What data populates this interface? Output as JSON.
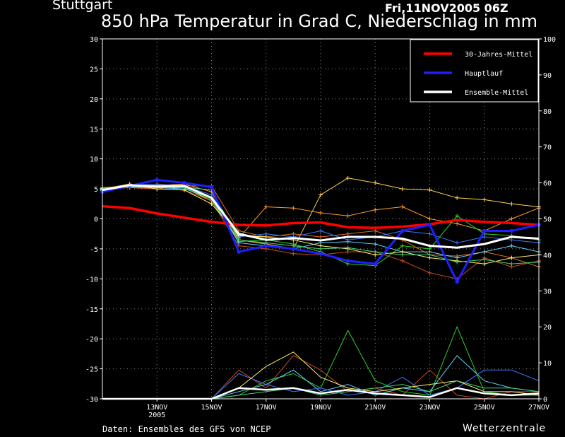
{
  "header": {
    "station": "Stuttgart",
    "datetime": "Fri,11NOV2005 06Z",
    "title": "850 hPa Temperatur in Grad C, Niederschlag in mm"
  },
  "footer": {
    "source": "Daten: Ensembles des GFS von NCEP",
    "brand": "Wetterzentrale"
  },
  "colors": {
    "background": "#000000",
    "climate": "#ff0000",
    "main_run": "#1f1fff",
    "ensemble_mean": "#ffffff",
    "members": [
      "#ffd24a",
      "#ff9a2a",
      "#e07020",
      "#c84a20",
      "#2ad22a",
      "#5fcfff",
      "#3a78ff",
      "#ffef6a",
      "#44d477"
    ]
  },
  "chart_data": {
    "type": "line",
    "x": [
      "11NOV",
      "12NOV",
      "13NOV",
      "14NOV",
      "15NOV",
      "16NOV",
      "17NOV",
      "18NOV",
      "19NOV",
      "20NOV",
      "21NOV",
      "22NOV",
      "23NOV",
      "24NOV",
      "25NOV",
      "26NOV",
      "27NOV"
    ],
    "x_tick_labels": [
      "13NOV",
      "15NOV",
      "17NOV",
      "19NOV",
      "21NOV",
      "23NOV",
      "25NOV",
      "27NOV"
    ],
    "x_year_label": "2005",
    "xlim": [
      "11NOV",
      "27NOV"
    ],
    "ylim_left": [
      -30,
      30
    ],
    "ylim_right": [
      0,
      100
    ],
    "left_ticks": [
      30,
      25,
      20,
      15,
      10,
      5,
      0,
      -5,
      -10,
      -15,
      -20,
      -25,
      -30
    ],
    "right_ticks": [
      100,
      90,
      80,
      70,
      60,
      50,
      40,
      30,
      20,
      10,
      0
    ],
    "grid": true,
    "legend_position": "top-right",
    "legend": [
      "30-Jahres-Mittel",
      "Hauptlauf",
      "Ensemble-Mittel"
    ],
    "series": [
      {
        "name": "30-Jahres-Mittel",
        "values": [
          2.1,
          1.8,
          0.9,
          0.2,
          -0.5,
          -1.0,
          -1.1,
          -0.7,
          -0.6,
          -1.4,
          -1.5,
          -1.3,
          -0.9,
          -0.2,
          -0.5,
          -0.7,
          -1.0
        ]
      },
      {
        "name": "Hauptlauf",
        "values": [
          4.5,
          5.5,
          6.5,
          6.0,
          5.3,
          -5.5,
          -4.5,
          -5.0,
          -5.8,
          -7.0,
          -7.5,
          -2.0,
          -1.0,
          -10.5,
          -2.0,
          -2.0,
          -1.0
        ]
      },
      {
        "name": "Ensemble-Mittel",
        "values": [
          4.8,
          5.6,
          5.4,
          5.5,
          3.5,
          -2.5,
          -3.5,
          -3.2,
          -3.6,
          -3.0,
          -3.0,
          -3.3,
          -4.5,
          -4.8,
          -4.2,
          -3.0,
          -3.3
        ]
      }
    ],
    "members": [
      [
        5.0,
        5.8,
        5.2,
        5.2,
        3.0,
        -3.5,
        -4.2,
        -5.0,
        4.0,
        6.8,
        6.0,
        5.0,
        4.8,
        3.5,
        3.2,
        2.5,
        2.0
      ],
      [
        5.2,
        5.5,
        5.6,
        5.8,
        4.5,
        -3.2,
        2.0,
        1.8,
        1.0,
        0.5,
        1.5,
        2.0,
        0.0,
        -0.8,
        -2.0,
        0.0,
        1.8
      ],
      [
        5.0,
        5.2,
        5.0,
        5.5,
        5.5,
        -2.0,
        -3.0,
        -2.5,
        -3.0,
        -2.5,
        -2.0,
        -3.5,
        -6.0,
        -6.2,
        -5.5,
        -6.5,
        -8.0
      ],
      [
        4.6,
        5.4,
        5.0,
        4.8,
        3.0,
        -4.5,
        -5.0,
        -5.8,
        -6.0,
        -5.5,
        -5.5,
        -7.0,
        -9.0,
        -10.0,
        -6.5,
        -8.0,
        -7.0
      ],
      [
        4.8,
        5.6,
        5.5,
        5.2,
        3.2,
        -3.8,
        -3.5,
        -4.2,
        -5.5,
        -7.5,
        -7.8,
        -4.5,
        -5.0,
        0.5,
        -2.5,
        -2.8,
        -3.5
      ],
      [
        4.7,
        5.3,
        5.2,
        5.0,
        3.5,
        -4.0,
        -4.5,
        -5.0,
        -4.0,
        -3.8,
        -4.2,
        -5.5,
        -5.5,
        -6.5,
        -5.5,
        -4.5,
        -5.5
      ],
      [
        4.5,
        5.6,
        5.8,
        5.5,
        4.0,
        -3.0,
        -2.5,
        -3.0,
        -2.0,
        -3.5,
        -3.0,
        -2.0,
        -2.5,
        -4.0,
        -3.0,
        -3.5,
        -4.0
      ],
      [
        4.9,
        5.7,
        5.0,
        4.8,
        2.5,
        -2.8,
        -3.0,
        -3.5,
        -4.5,
        -5.0,
        -6.0,
        -5.5,
        -6.5,
        -7.0,
        -7.5,
        -6.5,
        -6.0
      ],
      [
        5.1,
        5.4,
        5.3,
        5.3,
        4.8,
        -3.5,
        -4.0,
        -4.5,
        -5.0,
        -4.8,
        -5.5,
        -6.0,
        -6.0,
        -7.2,
        -6.8,
        -7.5,
        -7.2
      ]
    ],
    "precip_mean": [
      0,
      0,
      0,
      0,
      0,
      3,
      2.5,
      3,
      1.5,
      2.5,
      1.5,
      1,
      0.5,
      3,
      1.5,
      1,
      1.5
    ],
    "precip_members": [
      [
        0,
        0,
        0,
        0,
        0,
        8,
        3,
        12,
        8,
        2,
        3,
        1,
        8,
        1,
        0,
        2,
        2
      ],
      [
        0,
        0,
        0,
        0,
        0,
        1,
        5,
        7,
        3,
        19,
        5,
        2,
        1,
        20,
        2,
        1,
        1
      ],
      [
        0,
        0,
        0,
        0,
        0,
        2,
        4,
        8,
        2,
        4,
        1,
        3,
        2,
        12,
        5,
        3,
        2
      ],
      [
        0,
        0,
        0,
        0,
        0,
        7,
        4,
        2,
        3,
        1,
        2,
        6,
        1,
        3,
        8,
        8,
        5
      ],
      [
        0,
        0,
        0,
        0,
        0,
        3,
        9,
        13,
        6,
        3,
        2,
        3,
        4,
        5,
        2,
        2,
        1
      ],
      [
        0,
        0,
        0,
        0,
        0,
        1,
        2,
        3,
        1,
        2,
        3,
        4,
        2,
        5,
        3,
        3,
        2
      ]
    ]
  }
}
